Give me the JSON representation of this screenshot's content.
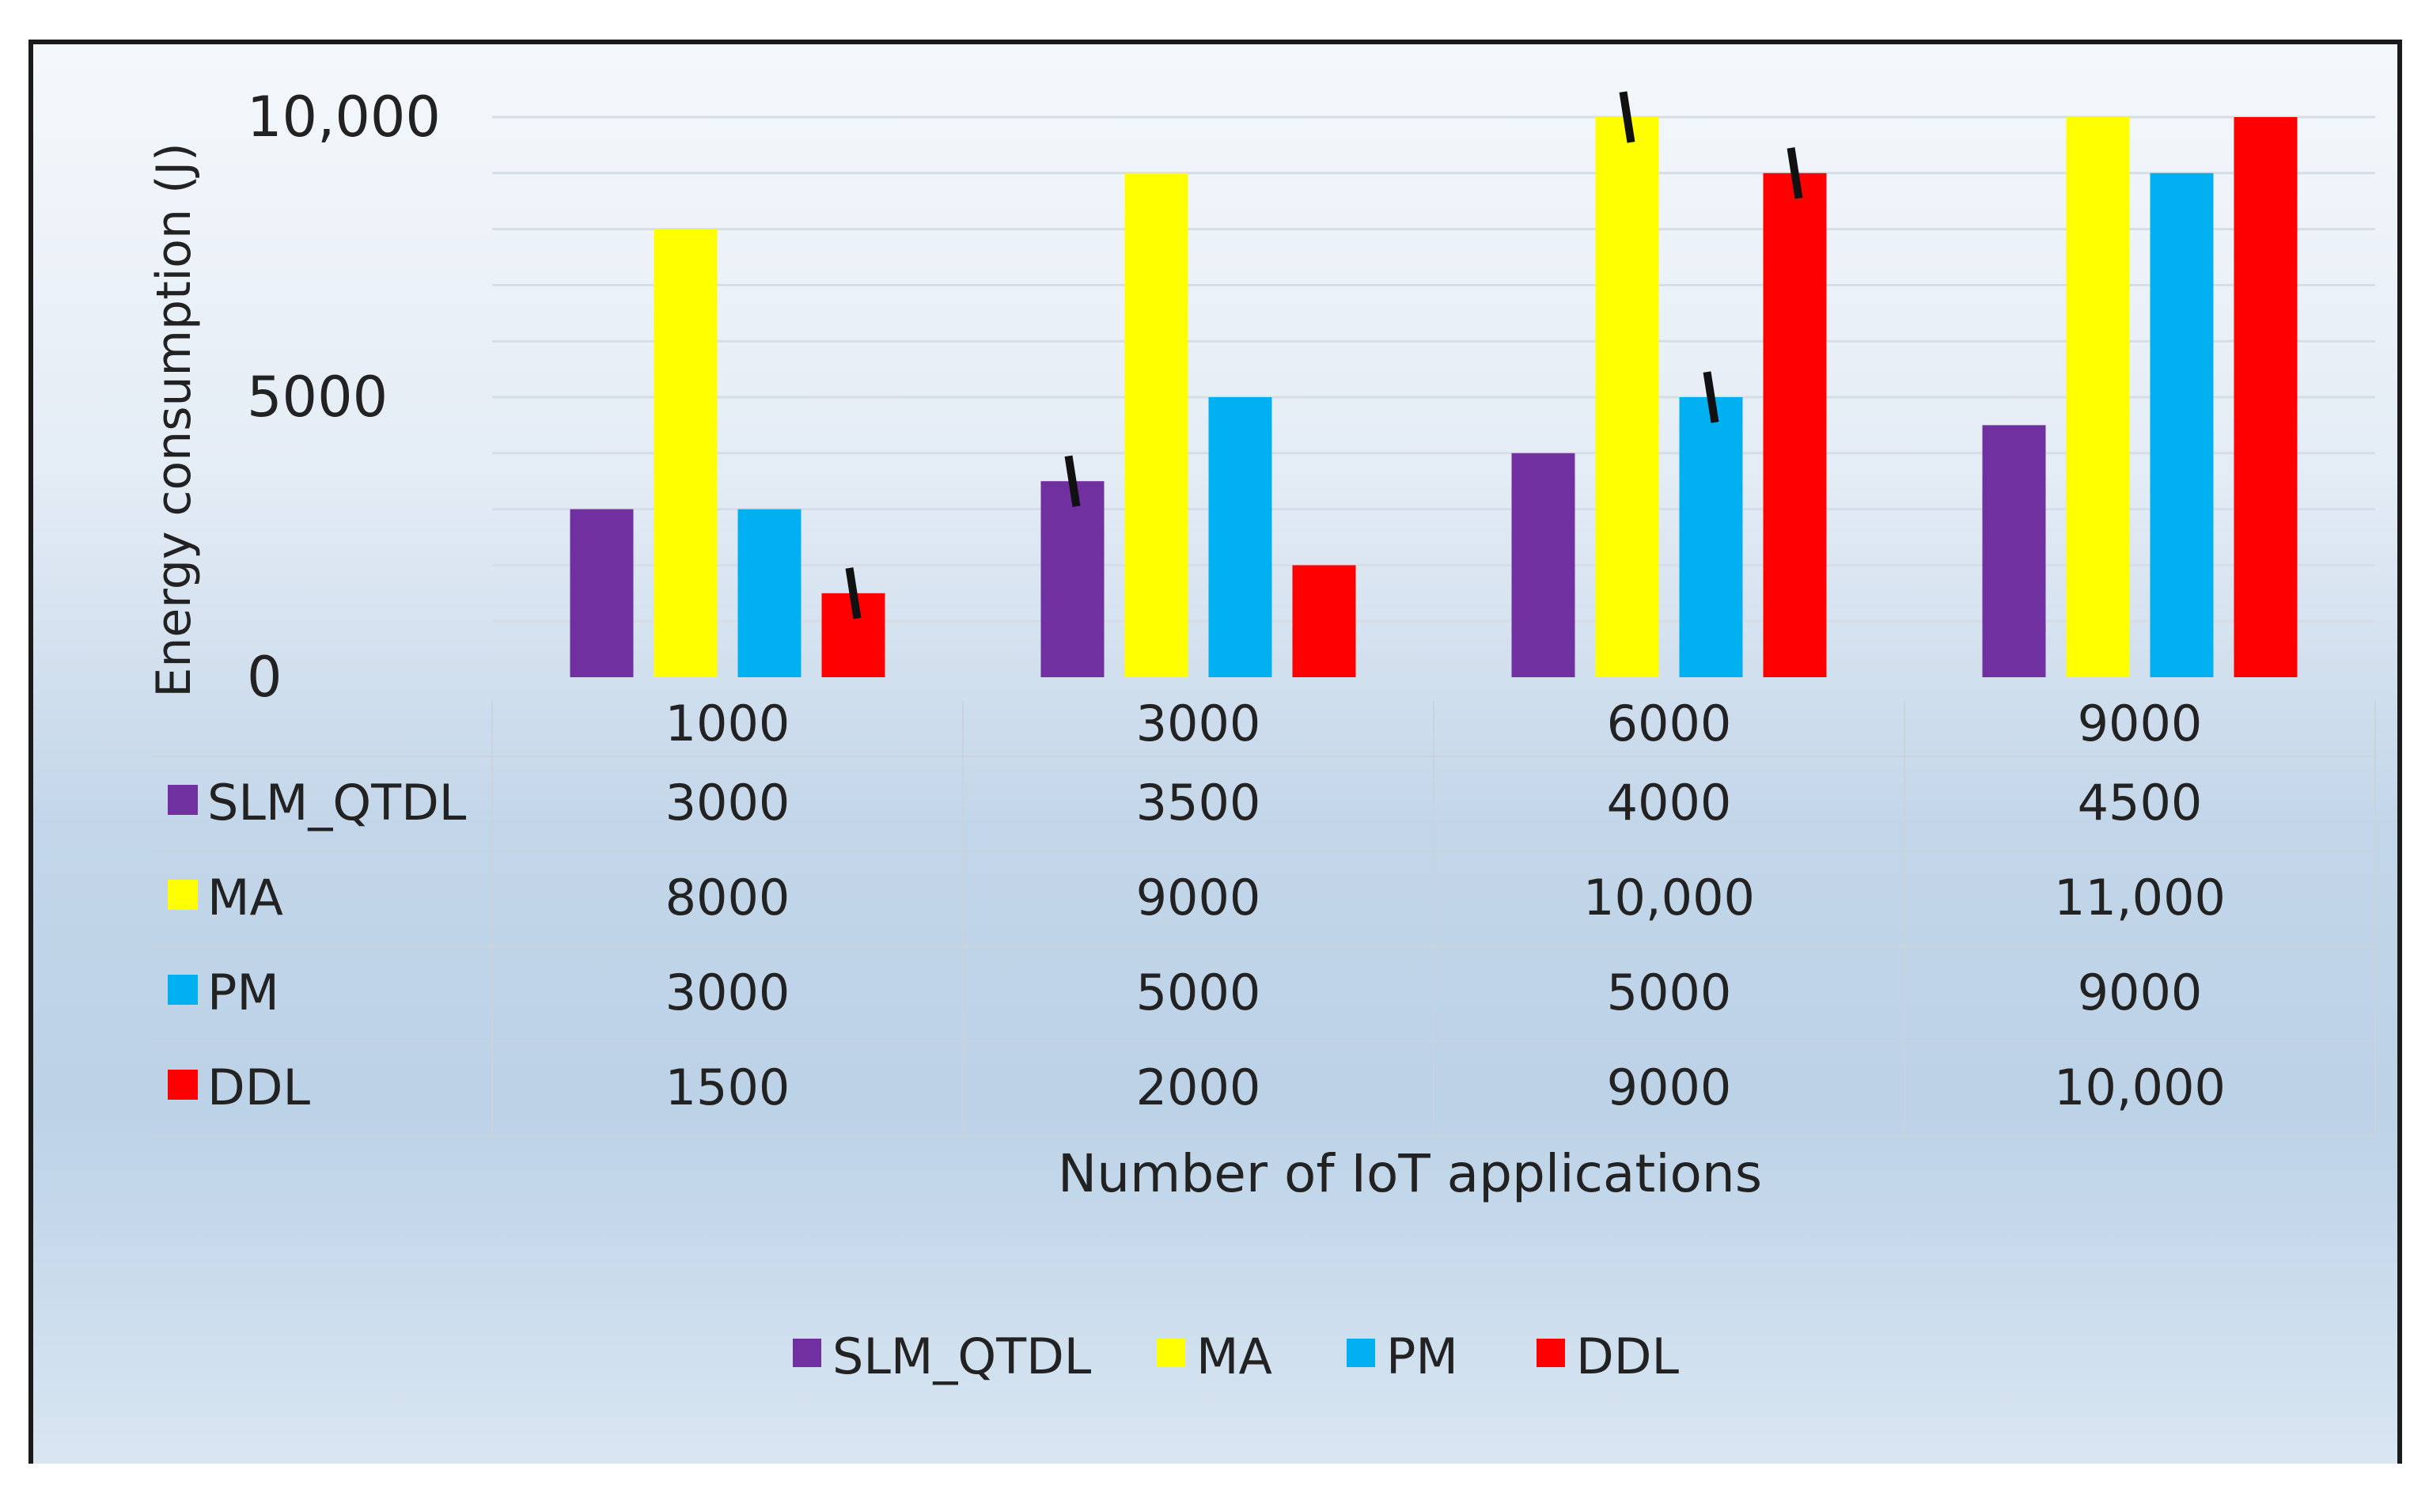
{
  "chart_data": {
    "type": "bar",
    "title": "",
    "xlabel": "Number of IoT applications",
    "ylabel": "Energy consumption (J)",
    "ylim": [
      0,
      10000
    ],
    "yticks": [
      0,
      5000,
      10000
    ],
    "ytick_labels": [
      "0",
      "5000",
      "10,000"
    ],
    "categories": [
      "1000",
      "3000",
      "6000",
      "9000"
    ],
    "series": [
      {
        "name": "SLM_QTDL",
        "color": "#7030a0",
        "values": [
          3000,
          3500,
          4000,
          4500
        ],
        "labels": [
          "3000",
          "3500",
          "4000",
          "4500"
        ],
        "error_bars": [
          null,
          900,
          null,
          null
        ]
      },
      {
        "name": "MA",
        "color": "#ffff00",
        "values": [
          8000,
          9000,
          10000,
          11000
        ],
        "labels": [
          "8000",
          "9000",
          "10,000",
          "11,000"
        ],
        "error_bars": [
          null,
          null,
          900,
          null
        ]
      },
      {
        "name": "PM",
        "color": "#00b0f0",
        "values": [
          3000,
          5000,
          5000,
          9000
        ],
        "labels": [
          "3000",
          "5000",
          "5000",
          "9000"
        ],
        "error_bars": [
          null,
          null,
          900,
          null
        ]
      },
      {
        "name": "DDL",
        "color": "#ff0000",
        "values": [
          1500,
          2000,
          9000,
          10000
        ],
        "labels": [
          "1500",
          "2000",
          "9000",
          "10,000"
        ],
        "error_bars": [
          900,
          null,
          900,
          null
        ]
      }
    ],
    "data_table": true,
    "legend_position": "bottom-center",
    "grid": true
  }
}
